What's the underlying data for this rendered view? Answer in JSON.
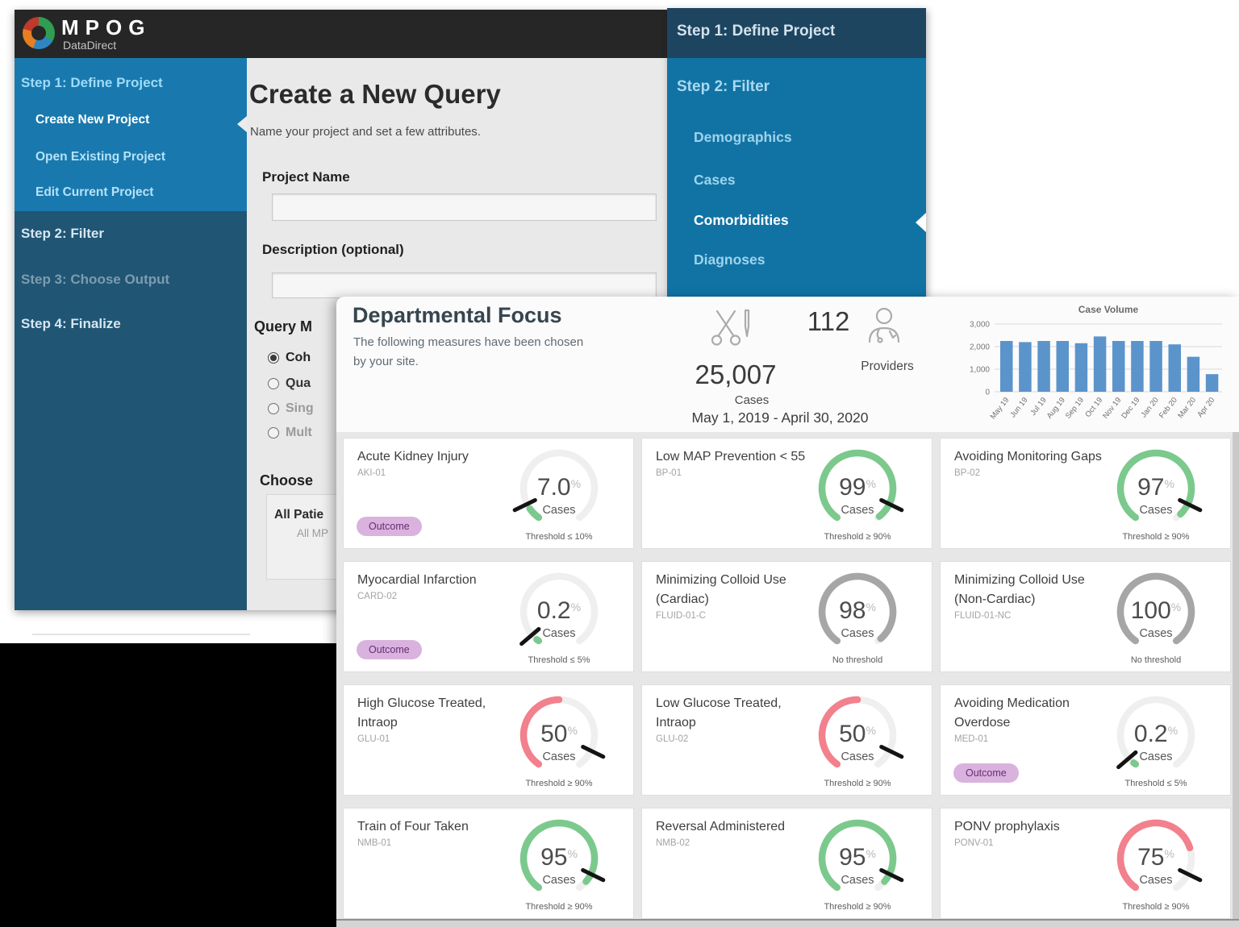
{
  "left_window": {
    "logo": {
      "title": "MPOG",
      "subtitle": "DataDirect"
    },
    "sidebar": {
      "step1_label": "Step 1: Define Project",
      "step1_items": [
        "Create New Project",
        "Open Existing Project",
        "Edit Current Project"
      ],
      "active_item": "Create New Project",
      "step2_label": "Step 2: Filter",
      "step3_label": "Step 3: Choose Output",
      "step4_label": "Step 4: Finalize"
    },
    "form": {
      "title": "Create a New Query",
      "subtitle": "Name your project and set a few attributes.",
      "project_name_label": "Project Name",
      "project_name_value": "",
      "description_label": "Description (optional)",
      "description_value": "",
      "query_mode_label": "Query M",
      "query_mode_options": [
        "Coh",
        "Qua",
        "Sing",
        "Mult"
      ],
      "selected_option": "Coh",
      "choose_label": "Choose",
      "scope_title": "All Patie",
      "scope_subtitle": "All MP"
    }
  },
  "right_panel": {
    "step1_label": "Step 1: Define Project",
    "step2_label": "Step 2: Filter",
    "items": [
      "Demographics",
      "Cases",
      "Comorbidities",
      "Diagnoses"
    ],
    "active_item": "Comorbidities"
  },
  "dashboard": {
    "title": "Departmental Focus",
    "subtitle_line1": "The following measures have been chosen",
    "subtitle_line2": "by your site.",
    "cases_count": "25,007",
    "cases_label": "Cases",
    "providers_count": "112",
    "providers_label": "Providers",
    "date_range": "May 1, 2019 - April 30, 2020",
    "colors": {
      "green": "#7cc98d",
      "red": "#f2808d",
      "gray": "#a6a6a6",
      "badge_bg": "#d9b3de",
      "badge_text": "#6a2b75",
      "bar": "#5b94cb"
    },
    "measures": [
      {
        "title": "Acute Kidney Injury",
        "code": "AKI-01",
        "badge": "Outcome",
        "value": "7.0",
        "pct": 7,
        "unit": "Cases",
        "threshold": "Threshold ≤ 10%",
        "threshold_pct": 10,
        "color": "green"
      },
      {
        "title": "Low MAP Prevention < 55",
        "code": "BP-01",
        "value": "99",
        "pct": 99,
        "unit": "Cases",
        "threshold": "Threshold ≥ 90%",
        "threshold_pct": 90,
        "color": "green"
      },
      {
        "title": "Avoiding Monitoring Gaps",
        "code": "BP-02",
        "value": "97",
        "pct": 97,
        "unit": "Cases",
        "threshold": "Threshold ≥ 90%",
        "threshold_pct": 90,
        "color": "green"
      },
      {
        "title": "Myocardial Infarction",
        "code": "CARD-02",
        "badge": "Outcome",
        "value": "0.2",
        "pct": 0.2,
        "unit": "Cases",
        "threshold": "Threshold ≤ 5%",
        "threshold_pct": 5,
        "color": "green"
      },
      {
        "title": "Minimizing Colloid Use (Cardiac)",
        "code": "FLUID-01-C",
        "value": "98",
        "pct": 98,
        "unit": "Cases",
        "threshold": "No threshold",
        "threshold_pct": null,
        "color": "gray"
      },
      {
        "title": "Minimizing Colloid Use (Non-Cardiac)",
        "code": "FLUID-01-NC",
        "value": "100",
        "pct": 100,
        "unit": "Cases",
        "threshold": "No threshold",
        "threshold_pct": null,
        "color": "gray"
      },
      {
        "title": "High Glucose Treated, Intraop",
        "code": "GLU-01",
        "value": "50",
        "pct": 50,
        "unit": "Cases",
        "threshold": "Threshold ≥ 90%",
        "threshold_pct": 90,
        "color": "red"
      },
      {
        "title": "Low Glucose Treated, Intraop",
        "code": "GLU-02",
        "value": "50",
        "pct": 50,
        "unit": "Cases",
        "threshold": "Threshold ≥ 90%",
        "threshold_pct": 90,
        "color": "red"
      },
      {
        "title": "Avoiding Medication Overdose",
        "code": "MED-01",
        "badge": "Outcome",
        "value": "0.2",
        "pct": 0.2,
        "unit": "Cases",
        "threshold": "Threshold ≤ 5%",
        "threshold_pct": 5,
        "color": "green"
      },
      {
        "title": "Train of Four Taken",
        "code": "NMB-01",
        "value": "95",
        "pct": 95,
        "unit": "Cases",
        "threshold": "Threshold ≥ 90%",
        "threshold_pct": 90,
        "color": "green"
      },
      {
        "title": "Reversal Administered",
        "code": "NMB-02",
        "value": "95",
        "pct": 95,
        "unit": "Cases",
        "threshold": "Threshold ≥ 90%",
        "threshold_pct": 90,
        "color": "green"
      },
      {
        "title": "PONV prophylaxis",
        "code": "PONV-01",
        "value": "75",
        "pct": 75,
        "unit": "Cases",
        "threshold": "Threshold ≥ 90%",
        "threshold_pct": 90,
        "color": "red"
      }
    ]
  },
  "chart_data": {
    "type": "bar",
    "title": "Case Volume",
    "categories": [
      "May 19",
      "Jun 19",
      "Jul 19",
      "Aug 19",
      "Sep 19",
      "Oct 19",
      "Nov 19",
      "Dec 19",
      "Jan 20",
      "Feb 20",
      "Mar 20",
      "Apr 20"
    ],
    "values": [
      2250,
      2200,
      2250,
      2250,
      2150,
      2450,
      2250,
      2250,
      2250,
      2100,
      1550,
      780
    ],
    "ylim": [
      0,
      3000
    ],
    "yticks": [
      {
        "value": 0,
        "label": "0"
      },
      {
        "value": 1000,
        "label": "1,000"
      },
      {
        "value": 2000,
        "label": "2,000"
      },
      {
        "value": 3000,
        "label": "3,000"
      }
    ],
    "xlabel": "",
    "ylabel": "",
    "grid": true,
    "legend": false
  }
}
